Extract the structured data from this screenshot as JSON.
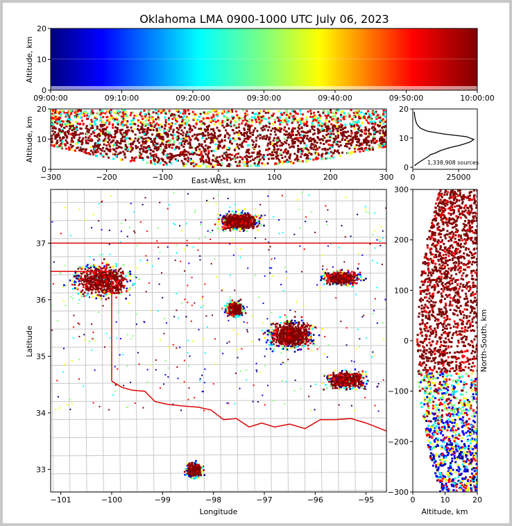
{
  "chart_data": {
    "type": "scatter",
    "title": "Oklahoma LMA 0900-1000 UTC July 06, 2023",
    "panels": {
      "time_height": {
        "ylabel": "Altitude, km",
        "ylim": [
          0,
          20
        ],
        "yticks": [
          "0",
          "10",
          "20"
        ],
        "xticks": [
          "09:00:00",
          "09:10:00",
          "09:20:00",
          "09:30:00",
          "09:40:00",
          "09:50:00",
          "10:00:00"
        ],
        "color_scale": "time (blue = early, red = late)"
      },
      "ew_height": {
        "xlabel": "East-West, km",
        "ylabel": "Altitude, km",
        "xlim": [
          -300,
          300
        ],
        "ylim": [
          0,
          20
        ],
        "xticks": [
          "−300",
          "−200",
          "−100",
          "0",
          "100",
          "200",
          "300"
        ],
        "yticks": [
          "0",
          "10",
          "20"
        ]
      },
      "altitude_histogram": {
        "xticks": [
          "0",
          "25000"
        ],
        "yticks": [
          "0",
          "10",
          "20"
        ],
        "annotation": "1,338,908 sources",
        "profile": [
          {
            "alt": 0.5,
            "count": 300
          },
          {
            "alt": 1.0,
            "count": 1200
          },
          {
            "alt": 2.0,
            "count": 4000
          },
          {
            "alt": 3.0,
            "count": 7000
          },
          {
            "alt": 4.0,
            "count": 10000
          },
          {
            "alt": 4.5,
            "count": 11000
          },
          {
            "alt": 5.0,
            "count": 14000
          },
          {
            "alt": 6.0,
            "count": 18000
          },
          {
            "alt": 7.0,
            "count": 24000
          },
          {
            "alt": 8.0,
            "count": 32000
          },
          {
            "alt": 9.0,
            "count": 38000
          },
          {
            "alt": 10.0,
            "count": 41000
          },
          {
            "alt": 11.0,
            "count": 36000
          },
          {
            "alt": 12.0,
            "count": 20000
          },
          {
            "alt": 13.0,
            "count": 9000
          },
          {
            "alt": 14.0,
            "count": 4500
          },
          {
            "alt": 15.0,
            "count": 2500
          },
          {
            "alt": 16.0,
            "count": 1500
          },
          {
            "alt": 17.0,
            "count": 900
          },
          {
            "alt": 18.0,
            "count": 500
          },
          {
            "alt": 19.0,
            "count": 250
          },
          {
            "alt": 20.0,
            "count": 100
          }
        ]
      },
      "plan_view": {
        "xlabel": "Longitude",
        "ylabel": "Latitude",
        "xlim": [
          -101.2,
          -94.6
        ],
        "ylim": [
          32.6,
          37.95
        ],
        "xticks": [
          "−101",
          "−100",
          "−99",
          "−98",
          "−97",
          "−96",
          "−95"
        ],
        "yticks": [
          "33",
          "34",
          "35",
          "36",
          "37"
        ]
      },
      "ns_height": {
        "xlabel": "Altitude, km",
        "ylabel": "North-South, km",
        "xlim": [
          0,
          20
        ],
        "ylim": [
          -300,
          300
        ],
        "xticks": [
          "0",
          "10",
          "20"
        ],
        "yticks": [
          "300",
          "200",
          "100",
          "0",
          "−100",
          "−200",
          "−300"
        ]
      }
    },
    "lightning_regions": [
      {
        "lon": -100.2,
        "lat": 36.35,
        "density": 1.0,
        "spread_lon": 0.9,
        "spread_lat": 0.45
      },
      {
        "lon": -97.5,
        "lat": 37.4,
        "density": 0.9,
        "spread_lon": 0.6,
        "spread_lat": 0.25
      },
      {
        "lon": -96.5,
        "lat": 35.4,
        "density": 1.0,
        "spread_lon": 0.7,
        "spread_lat": 0.4
      },
      {
        "lon": -97.6,
        "lat": 35.85,
        "density": 0.9,
        "spread_lon": 0.25,
        "spread_lat": 0.2
      },
      {
        "lon": -95.4,
        "lat": 34.6,
        "density": 0.7,
        "spread_lon": 0.6,
        "spread_lat": 0.25
      },
      {
        "lon": -98.4,
        "lat": 33.0,
        "density": 0.6,
        "spread_lon": 0.25,
        "spread_lat": 0.2
      },
      {
        "lon": -95.5,
        "lat": 36.4,
        "density": 0.5,
        "spread_lon": 0.6,
        "spread_lat": 0.2
      }
    ],
    "colors": {
      "time_map": [
        "#00007f",
        "#0000ff",
        "#00ffff",
        "#7fff7f",
        "#ffff00",
        "#ff0000",
        "#7f0000"
      ],
      "state_border": "#dd0000",
      "county_border": "#c8c8c8",
      "histogram_line": "#000000"
    }
  }
}
